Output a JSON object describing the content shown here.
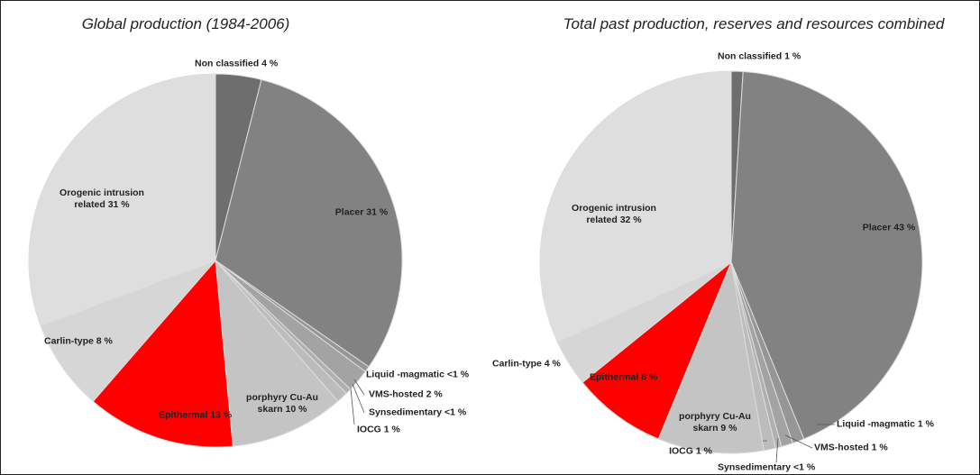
{
  "chart_data": [
    {
      "type": "pie",
      "title": "Global production (1984-2006)",
      "categories": [
        "Non classified",
        "Placer",
        "Liquid -magmatic",
        "VMS-hosted",
        "Synsedimentary",
        "IOCG",
        "porphyry Cu-Au skarn",
        "Epithermal",
        "Carlin-type",
        "Orogenic intrusion related"
      ],
      "values": [
        4,
        31,
        0.5,
        2,
        0.5,
        1,
        10,
        13,
        8,
        31
      ],
      "value_labels": [
        "4 %",
        "31 %",
        "<1 %",
        "2 %",
        "<1 %",
        "1 %",
        "10 %",
        "13 %",
        "8 %",
        "31 %"
      ],
      "colors": [
        "#6e6e6e",
        "#828282",
        "#969696",
        "#a3a3a3",
        "#b0b0b0",
        "#bcbcbc",
        "#c4c4c4",
        "#ff0000",
        "#d6d6d6",
        "#dedede"
      ]
    },
    {
      "type": "pie",
      "title": "Total past production, reserves and resources combined",
      "categories": [
        "Non classified",
        "Placer",
        "Liquid -magmatic",
        "VMS-hosted",
        "Synsedimentary",
        "IOCG",
        "porphyry Cu-Au skarn",
        "Epithermal",
        "Carlin-type",
        "Orogenic intrusion related"
      ],
      "values": [
        1,
        43,
        1,
        1,
        0.5,
        1,
        9,
        8,
        4,
        32
      ],
      "value_labels": [
        "1 %",
        "43 %",
        "1 %",
        "1 %",
        "<1 %",
        "1 %",
        "9 %",
        "8 %",
        "4 %",
        "32 %"
      ],
      "colors": [
        "#6e6e6e",
        "#828282",
        "#969696",
        "#a3a3a3",
        "#b0b0b0",
        "#bcbcbc",
        "#c4c4c4",
        "#ff0000",
        "#d6d6d6",
        "#dedede"
      ]
    }
  ]
}
